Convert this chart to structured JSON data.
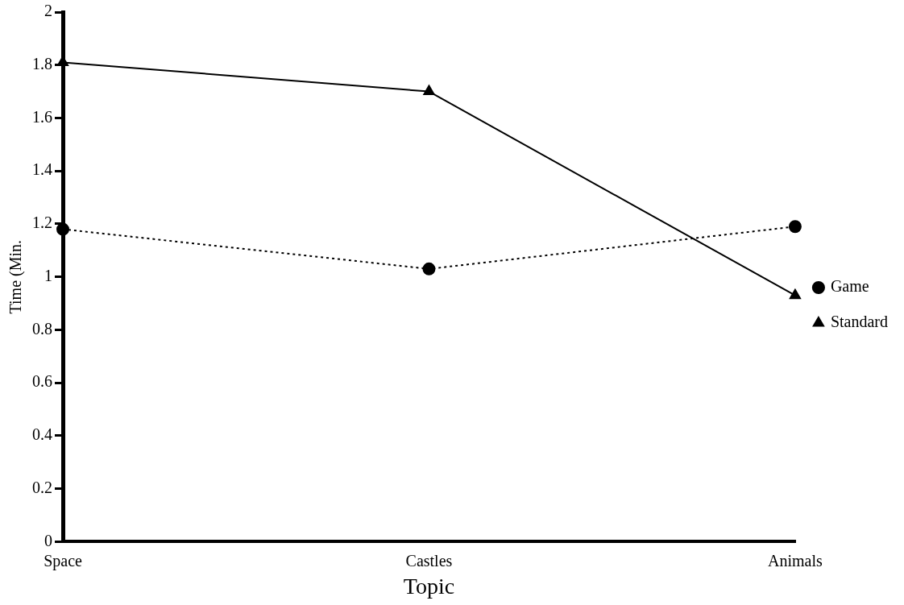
{
  "chart_data": {
    "type": "line",
    "xlabel": "Topic",
    "ylabel": "Time (Min.",
    "categories": [
      "Space",
      "Castles",
      "Animals"
    ],
    "series": [
      {
        "name": "Game",
        "color": "#000000",
        "values": [
          1.18,
          1.03,
          1.19
        ],
        "marker": "circle",
        "line_style": "dotted"
      },
      {
        "name": "Standard",
        "color": "#000000",
        "values": [
          1.81,
          1.7,
          0.93
        ],
        "marker": "triangle",
        "line_style": "solid"
      }
    ],
    "ylim": [
      0,
      2
    ],
    "yticks": [
      0,
      0.2,
      0.4,
      0.6,
      0.8,
      1,
      1.2,
      1.4,
      1.6,
      1.8,
      2
    ],
    "grid": false,
    "legend": "right"
  }
}
